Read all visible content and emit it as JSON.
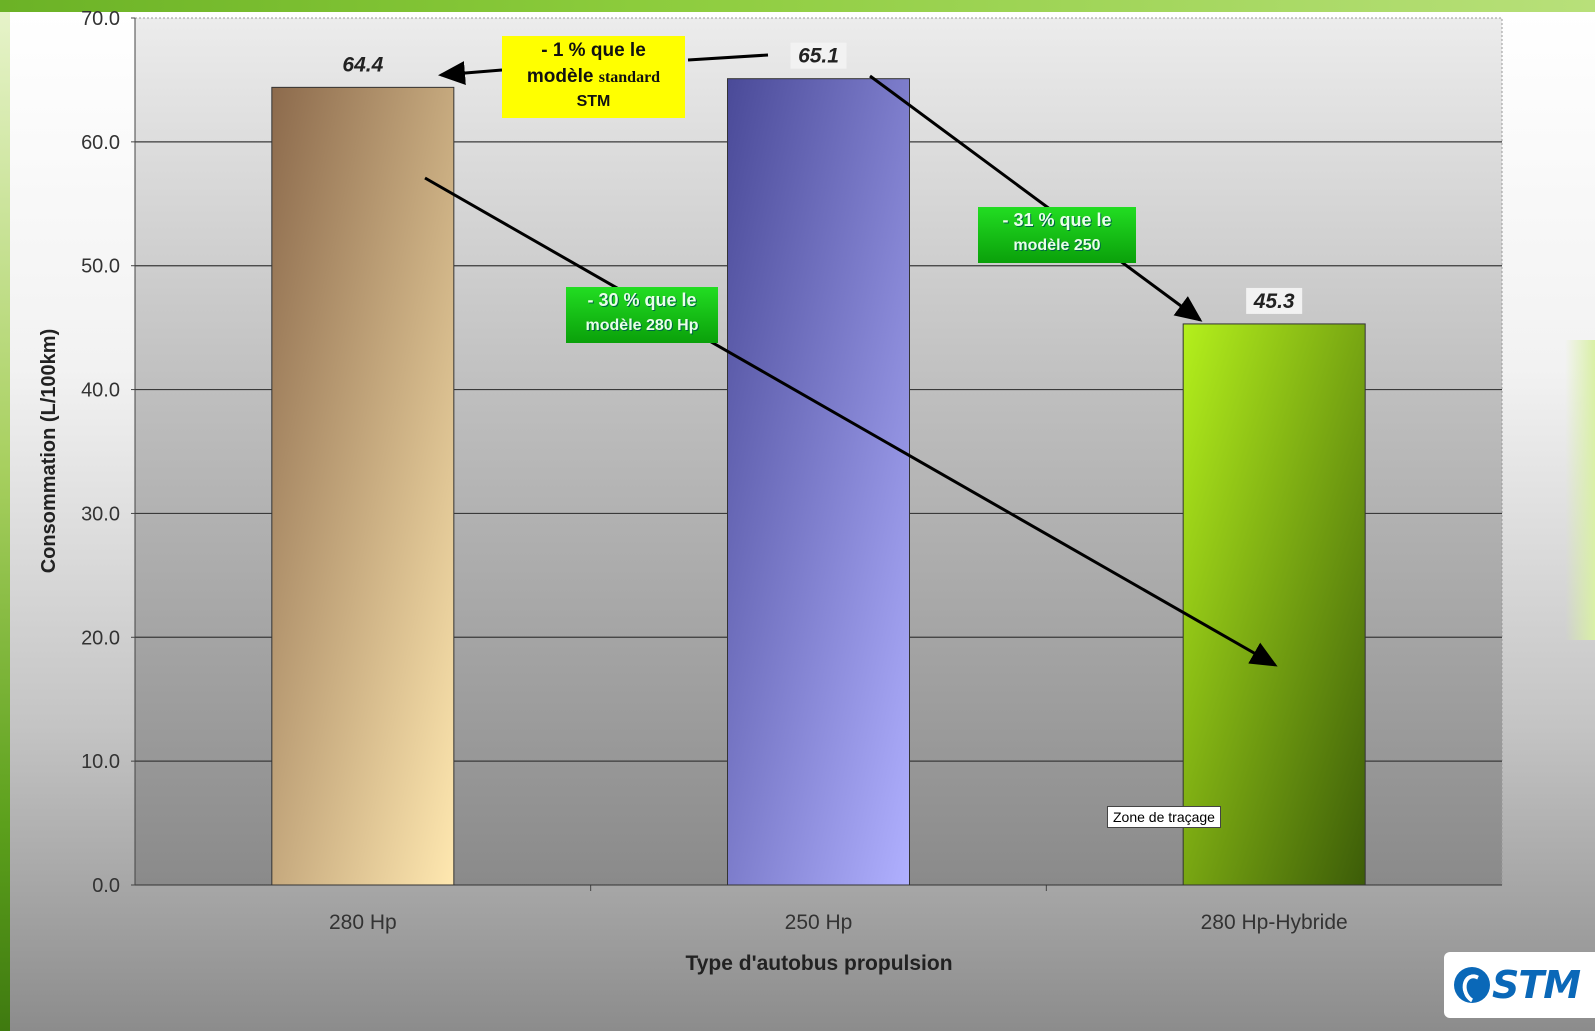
{
  "chart_data": {
    "type": "bar",
    "categories": [
      "280 Hp",
      "250 Hp",
      "280 Hp-Hybride"
    ],
    "values": [
      64.4,
      65.1,
      45.3
    ],
    "value_labels": [
      "64.4",
      "65.1",
      "45.3"
    ],
    "xlabel": "Type d'autobus propulsion",
    "ylabel": "Consommation (L/100km)",
    "ylim": [
      0,
      70
    ],
    "yticks": [
      "0.0",
      "10.0",
      "20.0",
      "30.0",
      "40.0",
      "50.0",
      "60.0",
      "70.0"
    ],
    "grid": true,
    "legend": "none",
    "colors": {
      "280 Hp": [
        "#8c6a4c",
        "#ffe8b0"
      ],
      "250 Hp": [
        "#4a4a98",
        "#b0b0ff"
      ],
      "280 Hp-Hybride": [
        "#b4f01c",
        "#3c5c08"
      ]
    },
    "annotations": {
      "callout_1_line1": "- 1 % que le",
      "callout_1_line2a": "modèle ",
      "callout_1_line2b": "standard",
      "callout_1_line3": "STM",
      "callout_2_line1": "- 31 % que le",
      "callout_2_line2": "modèle 250",
      "callout_3_line1": "- 30 % que le",
      "callout_3_line2": "modèle 280 Hp"
    },
    "plot_area_label": "Zone de traçage"
  },
  "logo": {
    "text": "STM",
    "color": "#0a68b8"
  }
}
